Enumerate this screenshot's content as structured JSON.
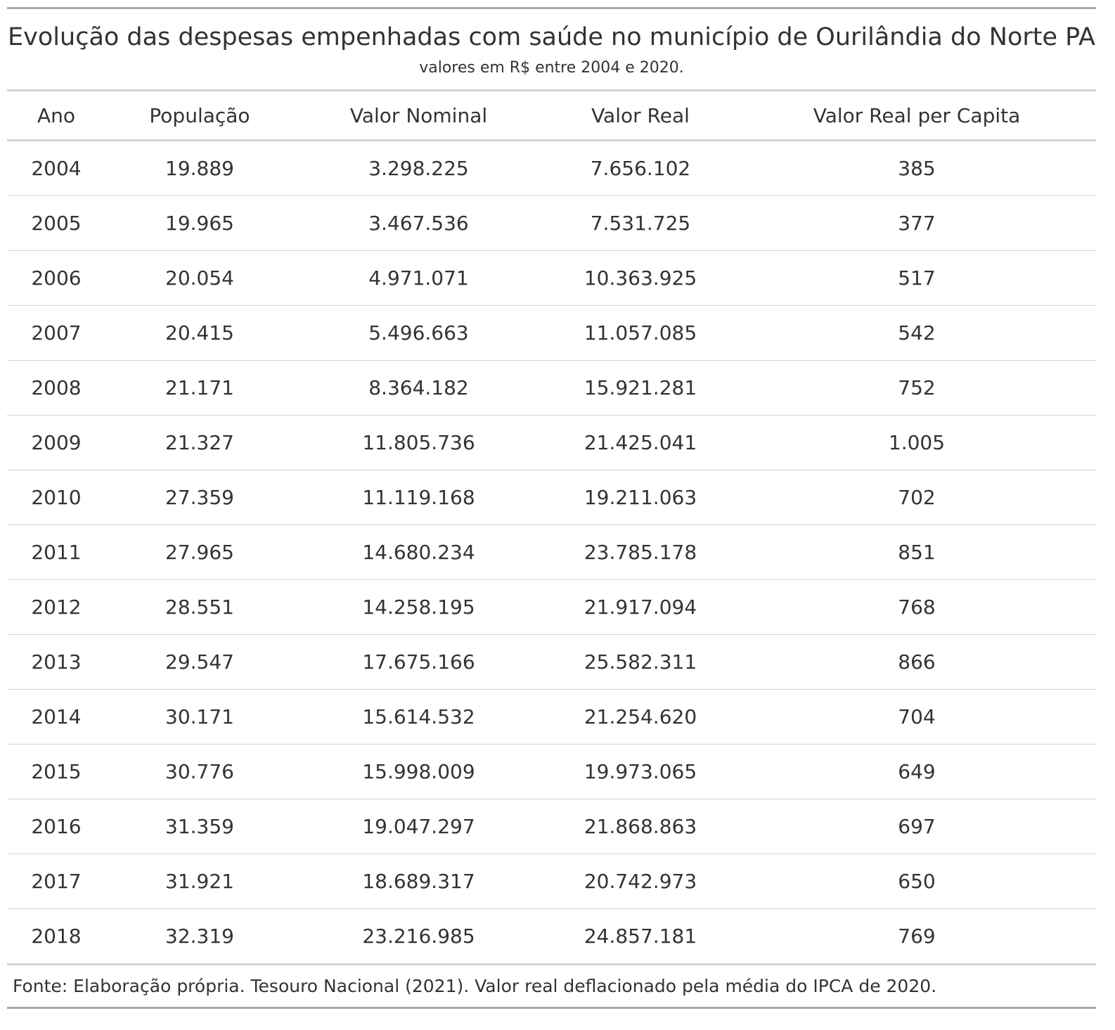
{
  "chart_data": {
    "type": "table",
    "title": "Evolução das despesas empenhadas com saúde no município de Ourilândia do Norte PA",
    "subtitle": "valores em R$ entre 2004 e 2020.",
    "columns": [
      "Ano",
      "População",
      "Valor Nominal",
      "Valor Real",
      "Valor Real per Capita"
    ],
    "rows": [
      [
        "2004",
        "19.889",
        "3.298.225",
        "7.656.102",
        "385"
      ],
      [
        "2005",
        "19.965",
        "3.467.536",
        "7.531.725",
        "377"
      ],
      [
        "2006",
        "20.054",
        "4.971.071",
        "10.363.925",
        "517"
      ],
      [
        "2007",
        "20.415",
        "5.496.663",
        "11.057.085",
        "542"
      ],
      [
        "2008",
        "21.171",
        "8.364.182",
        "15.921.281",
        "752"
      ],
      [
        "2009",
        "21.327",
        "11.805.736",
        "21.425.041",
        "1.005"
      ],
      [
        "2010",
        "27.359",
        "11.119.168",
        "19.211.063",
        "702"
      ],
      [
        "2011",
        "27.965",
        "14.680.234",
        "23.785.178",
        "851"
      ],
      [
        "2012",
        "28.551",
        "14.258.195",
        "21.917.094",
        "768"
      ],
      [
        "2013",
        "29.547",
        "17.675.166",
        "25.582.311",
        "866"
      ],
      [
        "2014",
        "30.171",
        "15.614.532",
        "21.254.620",
        "704"
      ],
      [
        "2015",
        "30.776",
        "15.998.009",
        "19.973.065",
        "649"
      ],
      [
        "2016",
        "31.359",
        "19.047.297",
        "21.868.863",
        "697"
      ],
      [
        "2017",
        "31.921",
        "18.689.317",
        "20.742.973",
        "650"
      ],
      [
        "2018",
        "32.319",
        "23.216.985",
        "24.857.181",
        "769"
      ]
    ],
    "source": "Fonte: Elaboração própria. Tesouro Nacional (2021). Valor real deflacionado pela média do IPCA de 2020."
  }
}
